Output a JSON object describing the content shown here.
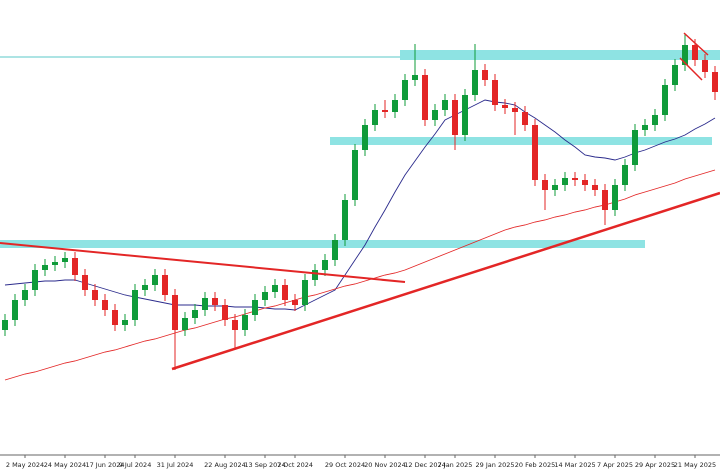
{
  "chart_data": {
    "type": "candlestick",
    "categories": [
      null,
      null,
      "2 May 2024",
      null,
      null,
      null,
      "24 May 2024",
      null,
      null,
      null,
      "17 Jun 2024",
      null,
      null,
      "9 Jul 2024",
      null,
      null,
      null,
      "31 Jul 2024",
      null,
      null,
      null,
      null,
      "22 Aug 2024",
      null,
      null,
      null,
      "13 Sep 2024",
      null,
      null,
      "7 Oct 2024",
      null,
      null,
      null,
      null,
      "29 Oct 2024",
      null,
      null,
      null,
      "20 Nov 2024",
      null,
      null,
      null,
      "12 Dec 2024",
      null,
      null,
      "7 Jan 2025",
      null,
      null,
      null,
      "29 Jan 2025",
      null,
      null,
      null,
      "20 Feb 2025",
      null,
      null,
      null,
      "14 Mar 2025",
      null,
      null,
      null,
      "7 Apr 2025",
      null,
      null,
      null,
      "29 Apr 2025",
      null,
      null,
      null,
      "21 May 2025",
      null,
      null
    ],
    "open": [
      125,
      135,
      155,
      165,
      185,
      190,
      193,
      197,
      180,
      165,
      155,
      145,
      130,
      135,
      165,
      170,
      180,
      160,
      125,
      137,
      145,
      157,
      150,
      135,
      125,
      140,
      155,
      163,
      170,
      155,
      150,
      175,
      185,
      195,
      215,
      255,
      305,
      330,
      345,
      343,
      355,
      375,
      380,
      335,
      345,
      355,
      320,
      360,
      385,
      375,
      350,
      347,
      343,
      330,
      275,
      265,
      270,
      277,
      275,
      270,
      265,
      245,
      270,
      290,
      325,
      330,
      340,
      370,
      390,
      410,
      395,
      383
    ],
    "high": [
      141,
      161,
      171,
      191,
      196,
      199,
      203,
      203,
      186,
      171,
      161,
      151,
      141,
      171,
      176,
      186,
      186,
      166,
      143,
      151,
      163,
      163,
      156,
      141,
      146,
      161,
      169,
      176,
      176,
      161,
      181,
      191,
      201,
      221,
      261,
      311,
      336,
      351,
      355,
      361,
      381,
      411,
      386,
      351,
      361,
      361,
      366,
      411,
      391,
      381,
      356,
      353,
      349,
      336,
      281,
      276,
      283,
      283,
      281,
      276,
      271,
      276,
      296,
      331,
      336,
      346,
      376,
      396,
      421,
      416,
      401,
      389
    ],
    "low": [
      119,
      129,
      149,
      159,
      179,
      184,
      187,
      174,
      159,
      149,
      139,
      124,
      124,
      129,
      159,
      164,
      154,
      85,
      119,
      131,
      139,
      144,
      129,
      105,
      119,
      134,
      149,
      157,
      149,
      144,
      144,
      169,
      179,
      189,
      209,
      249,
      299,
      324,
      337,
      337,
      349,
      369,
      329,
      329,
      339,
      305,
      314,
      354,
      369,
      344,
      341,
      320,
      324,
      269,
      245,
      259,
      264,
      269,
      264,
      259,
      230,
      239,
      264,
      284,
      319,
      324,
      334,
      364,
      384,
      389,
      377,
      355
    ],
    "close": [
      135,
      155,
      165,
      185,
      190,
      193,
      197,
      180,
      165,
      155,
      145,
      130,
      135,
      165,
      170,
      180,
      160,
      125,
      137,
      145,
      157,
      150,
      135,
      125,
      140,
      155,
      163,
      170,
      155,
      150,
      175,
      185,
      195,
      215,
      255,
      305,
      330,
      345,
      343,
      355,
      375,
      380,
      335,
      345,
      355,
      320,
      360,
      385,
      375,
      350,
      347,
      343,
      330,
      275,
      265,
      270,
      277,
      275,
      270,
      265,
      245,
      270,
      290,
      325,
      330,
      340,
      370,
      390,
      410,
      395,
      383,
      363
    ],
    "up_color": "#0f9b3a",
    "down_color": "#e32626",
    "lines": [
      {
        "color": "#2b2b8c",
        "values": [
          170,
          171,
          172,
          173,
          174,
          174,
          175,
          175,
          172,
          169,
          166,
          163,
          160,
          158,
          156,
          154,
          152,
          150,
          150,
          150,
          149,
          149,
          149,
          148,
          148,
          148,
          147,
          146,
          146,
          145,
          150,
          155,
          160,
          165,
          180,
          195,
          210,
          228,
          245,
          263,
          280,
          294,
          308,
          321,
          335,
          340,
          345,
          350,
          355,
          353,
          352,
          350,
          343,
          337,
          330,
          323,
          315,
          308,
          300,
          298,
          297,
          295,
          298,
          302,
          305,
          309,
          313,
          316,
          320,
          326,
          331,
          337
        ]
      },
      {
        "color": "#e32626",
        "values": [
          75,
          78,
          81,
          83,
          86,
          89,
          92,
          94,
          97,
          100,
          103,
          105,
          108,
          111,
          114,
          116,
          119,
          122,
          125,
          127,
          130,
          133,
          136,
          138,
          141,
          144,
          147,
          149,
          152,
          155,
          158,
          160,
          163,
          166,
          169,
          171,
          174,
          177,
          180,
          182,
          185,
          189,
          193,
          197,
          201,
          205,
          209,
          213,
          217,
          221,
          225,
          228,
          230,
          233,
          235,
          238,
          240,
          243,
          245,
          248,
          250,
          253,
          256,
          260,
          263,
          266,
          269,
          272,
          276,
          279,
          282,
          285
        ]
      }
    ],
    "ylim": [
      0,
      455
    ]
  }
}
